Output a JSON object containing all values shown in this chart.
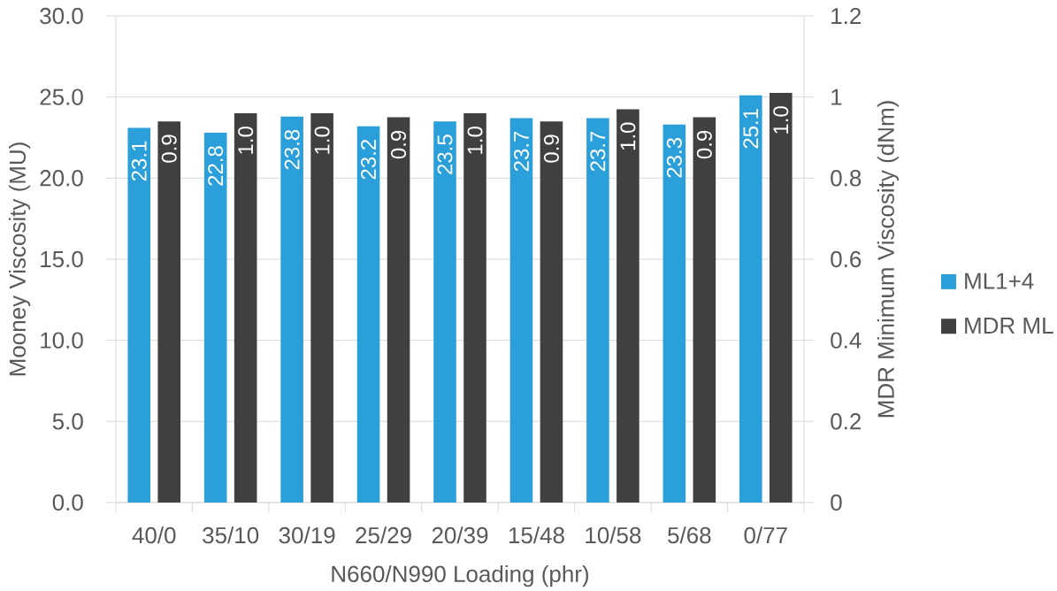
{
  "chart_data": {
    "type": "bar",
    "xlabel": "N660/N990 Loading (phr)",
    "ylabel": "Mooney Viscosity (MU)",
    "y2label": "MDR Minimum Viscosity (dNm)",
    "categories": [
      "40/0",
      "35/10",
      "30/19",
      "25/29",
      "20/39",
      "15/48",
      "10/58",
      "5/68",
      "0/77"
    ],
    "series": [
      {
        "name": "ML1+4",
        "color": "#2a9fda",
        "values": [
          23.1,
          22.8,
          23.8,
          23.2,
          23.5,
          23.7,
          23.7,
          23.3,
          25.1
        ],
        "value_labels": [
          "23.1",
          "22.8",
          "23.8",
          "23.2",
          "23.5",
          "23.7",
          "23.7",
          "23.3",
          "25.1"
        ]
      },
      {
        "name": "MDR ML",
        "color": "#404040",
        "axis": "y2",
        "values": [
          0.94,
          0.96,
          0.96,
          0.95,
          0.96,
          0.94,
          0.97,
          0.95,
          1.01
        ],
        "value_labels": [
          "0.9",
          "1.0",
          "1.0",
          "0.9",
          "1.0",
          "0.9",
          "1.0",
          "0.9",
          "1.0"
        ]
      }
    ],
    "ylim": [
      0,
      30
    ],
    "yticks": [
      {
        "value": 0,
        "label": "0.0"
      },
      {
        "value": 5,
        "label": "5.0"
      },
      {
        "value": 10,
        "label": "10.0"
      },
      {
        "value": 15,
        "label": "15.0"
      },
      {
        "value": 20,
        "label": "20.0"
      },
      {
        "value": 25,
        "label": "25.0"
      },
      {
        "value": 30,
        "label": "30.0"
      }
    ],
    "y2lim": [
      0,
      1.2
    ],
    "y2ticks": [
      0,
      0.2,
      0.4,
      0.6,
      0.8,
      1,
      1.2
    ],
    "grid": "y",
    "legend": "right"
  }
}
